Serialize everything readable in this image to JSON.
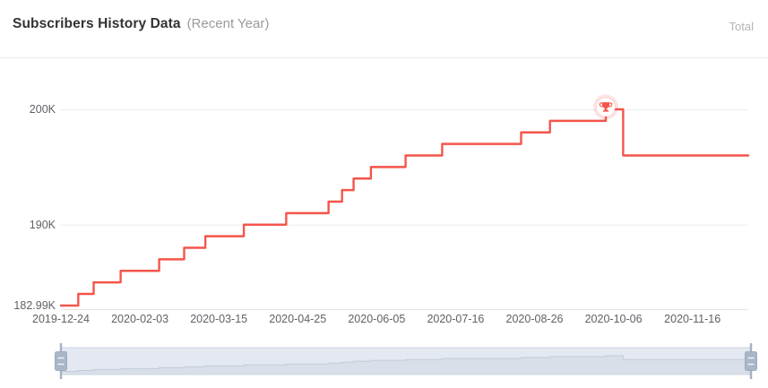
{
  "header": {
    "title": "Subscribers History Data",
    "subtitle": "(Recent Year)",
    "right_label": "Total"
  },
  "colors": {
    "line": "#f4554a",
    "line_glow": "rgba(244,85,74,0.16)",
    "badge_bg": "#ffffff",
    "grid": "#ededed",
    "axis_line": "#e4e4e4",
    "tick_text": "#5e6166",
    "divider": "#ececec",
    "title": "#333333",
    "subtitle": "#9b9b9b",
    "total_label": "#b5b5b5",
    "slider_track": "#e3e8f1",
    "slider_fill": "#d8dfe9",
    "slider_line": "#c2cbd8",
    "slider_border": "#ccd4e2",
    "handle_bar": "#a6b2c5",
    "handle_fill": "#a9b6c8",
    "handle_border": "#93a2b8",
    "handle_grip": "#eef2f7"
  },
  "chart_data": {
    "type": "line",
    "line_style": "step-after",
    "title": "Subscribers History Data (Recent Year)",
    "legend": "none",
    "grid": true,
    "x_range": [
      "2019-12-24",
      "2020-12-15"
    ],
    "y_range": [
      182990,
      200000
    ],
    "x_ticks": [
      "2019-12-24",
      "2020-02-03",
      "2020-03-15",
      "2020-04-25",
      "2020-06-05",
      "2020-07-16",
      "2020-08-26",
      "2020-10-06",
      "2020-11-16"
    ],
    "y_ticks": [
      {
        "label": "200K",
        "value": 200000
      },
      {
        "label": "190K",
        "value": 190000
      },
      {
        "label": "182.99K",
        "value": 182990
      }
    ],
    "series": [
      {
        "name": "Total",
        "color": "#f4554a",
        "points": [
          [
            "2019-12-24",
            182990
          ],
          [
            "2020-01-02",
            184000
          ],
          [
            "2020-01-10",
            185000
          ],
          [
            "2020-01-24",
            186000
          ],
          [
            "2020-02-13",
            187000
          ],
          [
            "2020-02-26",
            188000
          ],
          [
            "2020-03-08",
            189000
          ],
          [
            "2020-03-28",
            190000
          ],
          [
            "2020-04-19",
            191000
          ],
          [
            "2020-05-11",
            192000
          ],
          [
            "2020-05-18",
            193000
          ],
          [
            "2020-05-24",
            194000
          ],
          [
            "2020-06-02",
            195000
          ],
          [
            "2020-06-20",
            196000
          ],
          [
            "2020-07-09",
            197000
          ],
          [
            "2020-08-19",
            198000
          ],
          [
            "2020-09-03",
            199000
          ],
          [
            "2020-10-02",
            200000
          ],
          [
            "2020-10-11",
            196000
          ],
          [
            "2020-12-15",
            196000
          ]
        ],
        "peak": {
          "date": "2020-10-02",
          "value": 200000,
          "marker": "trophy"
        }
      }
    ]
  },
  "slider": {
    "purpose": "date-range-zoom",
    "selected": "full-range"
  }
}
